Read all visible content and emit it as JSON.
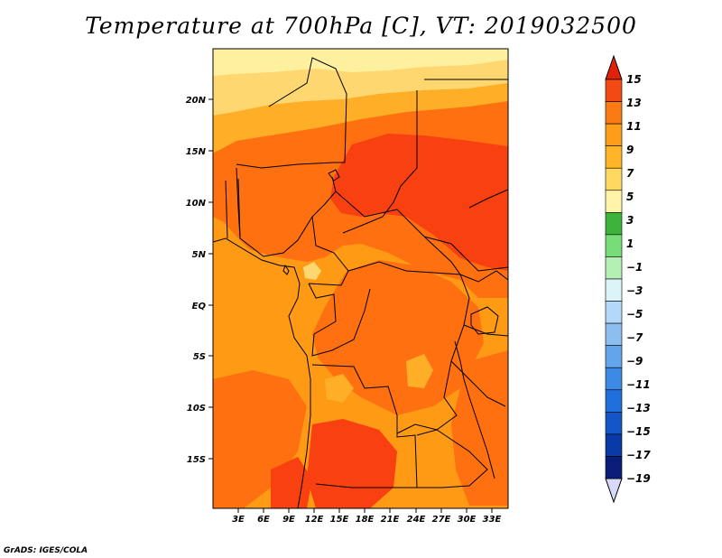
{
  "title": "Temperature at 700hPa [C], VT: 2019032500",
  "credit": "GrADS: IGES/COLA",
  "map": {
    "lat_labels": [
      "20N",
      "15N",
      "10N",
      "5N",
      "EQ",
      "5S",
      "10S",
      "15S"
    ],
    "lon_labels": [
      "3E",
      "6E",
      "9E",
      "12E",
      "15E",
      "18E",
      "21E",
      "24E",
      "27E",
      "30E",
      "33E"
    ],
    "colors": {
      "temp_3_5": "#fff0a0",
      "temp_5_7": "#ffd770",
      "temp_7_9": "#ffae28",
      "temp_9_11": "#ff9a14",
      "temp_11_13": "#ff7010",
      "temp_13_15": "#f84010",
      "borders": "#000000"
    }
  },
  "colorbar": {
    "labels": [
      "15",
      "13",
      "11",
      "9",
      "7",
      "5",
      "3",
      "1",
      "−1",
      "−3",
      "−5",
      "−7",
      "−9",
      "−11",
      "−13",
      "−15",
      "−17",
      "−19"
    ],
    "colors": [
      "#e0220c",
      "#f24a12",
      "#fa7a14",
      "#ff9d18",
      "#ffb428",
      "#ffd95e",
      "#fff4a8",
      "#3cb43c",
      "#78dc78",
      "#b4f0b4",
      "#dcf4f8",
      "#b4d8f8",
      "#8cbef0",
      "#64a4ec",
      "#3c8ae6",
      "#2070dc",
      "#1456c8",
      "#0a3aa8",
      "#081c78",
      "#d8d8f8"
    ]
  }
}
